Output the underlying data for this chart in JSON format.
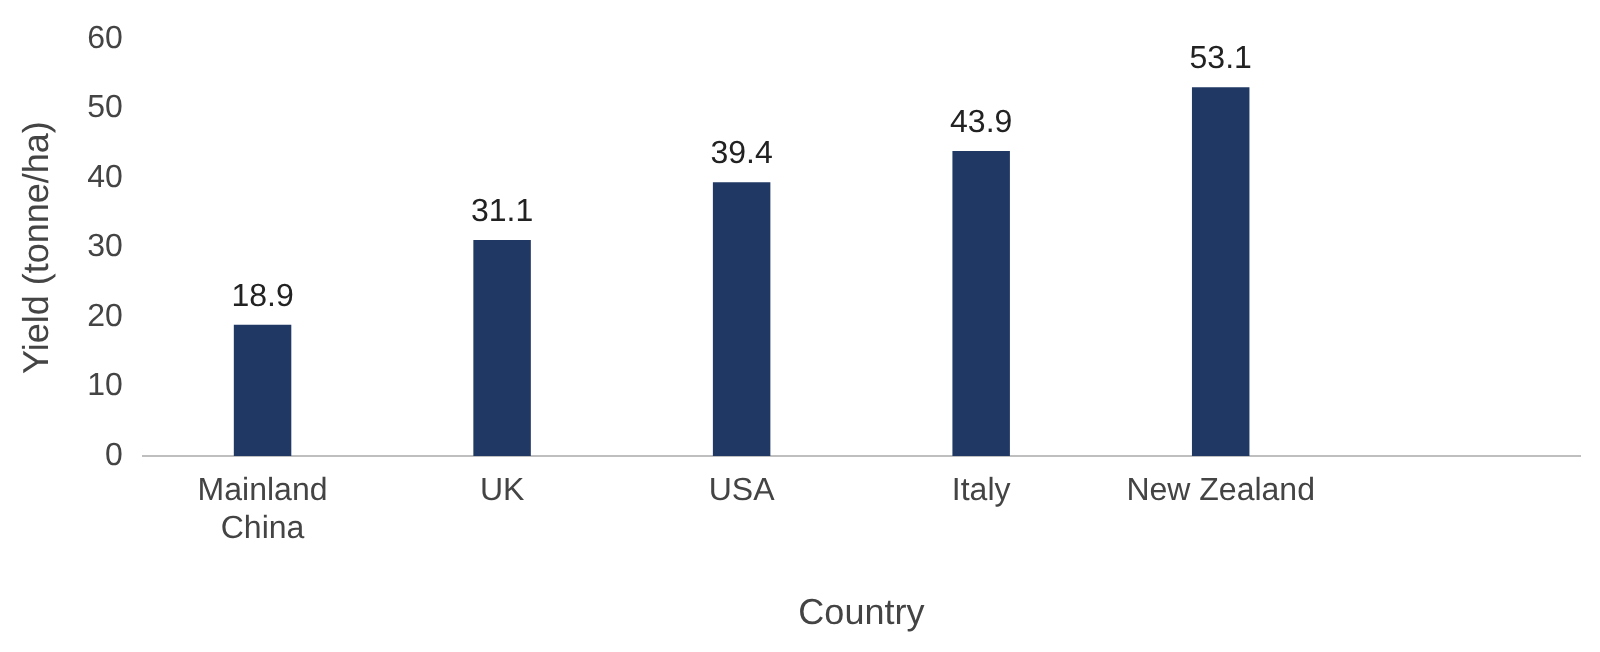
{
  "chart_data": {
    "type": "bar",
    "xlabel": "Country",
    "ylabel": "Yield (tonne/ha)",
    "categories": [
      "Mainland China",
      "UK",
      "USA",
      "Italy",
      "New Zealand",
      null
    ],
    "values": [
      18.9,
      31.1,
      39.4,
      43.9,
      53.1,
      null
    ],
    "color": "#203864",
    "ylim": [
      0,
      60
    ],
    "yticks": [
      0,
      10,
      20,
      30,
      40,
      50,
      60
    ],
    "grid": false,
    "legend": false,
    "data_labels": true
  }
}
